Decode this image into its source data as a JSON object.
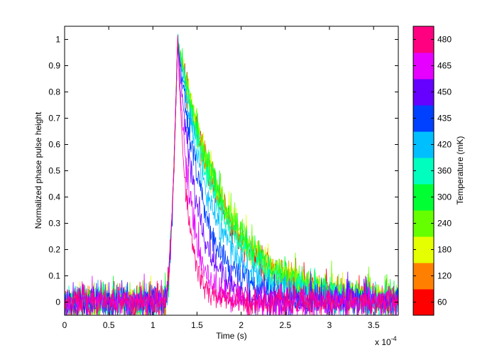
{
  "chart_data": {
    "type": "line",
    "title": "",
    "xlabel": "Time (s)",
    "ylabel": "Normalized phase pulse height",
    "x_exponent_label": "x 10",
    "x_exponent_power": "-4",
    "x_scale": 0.0001,
    "xlim": [
      0,
      3.78
    ],
    "ylim": [
      -0.05,
      1.05
    ],
    "x_ticks": [
      "0",
      "0.5",
      "1",
      "1.5",
      "2",
      "2.5",
      "3",
      "3.5"
    ],
    "y_ticks": [
      "0",
      "0.1",
      "0.2",
      "0.3",
      "0.4",
      "0.5",
      "0.6",
      "0.7",
      "0.8",
      "0.9",
      "1"
    ],
    "grid": false,
    "colorbar": {
      "label": "Temperature (mK)",
      "levels": [
        60,
        120,
        180,
        240,
        300,
        360,
        420,
        435,
        450,
        465,
        480
      ],
      "colors": [
        "#ff0000",
        "#ff8000",
        "#e6ff00",
        "#66ff00",
        "#00ff33",
        "#00ffbf",
        "#00bfff",
        "#0040ff",
        "#6600ff",
        "#e600ff",
        "#ff0080"
      ]
    },
    "pulse": {
      "baseline_x_end": 1.13,
      "peak_x": 1.28,
      "peak_y": 1.0,
      "noise_amplitude": 0.03
    },
    "series": [
      {
        "temperature": 60,
        "color": "#ff0000",
        "decay_time": 0.5
      },
      {
        "temperature": 120,
        "color": "#ff8000",
        "decay_time": 0.52
      },
      {
        "temperature": 180,
        "color": "#e6ff00",
        "decay_time": 0.53
      },
      {
        "temperature": 240,
        "color": "#66ff00",
        "decay_time": 0.55
      },
      {
        "temperature": 300,
        "color": "#00ff33",
        "decay_time": 0.52
      },
      {
        "temperature": 360,
        "color": "#00ffbf",
        "decay_time": 0.46
      },
      {
        "temperature": 420,
        "color": "#00bfff",
        "decay_time": 0.38
      },
      {
        "temperature": 435,
        "color": "#0040ff",
        "decay_time": 0.3
      },
      {
        "temperature": 450,
        "color": "#6600ff",
        "decay_time": 0.22
      },
      {
        "temperature": 465,
        "color": "#e600ff",
        "decay_time": 0.15
      },
      {
        "temperature": 480,
        "color": "#ff0080",
        "decay_time": 0.11
      }
    ]
  }
}
